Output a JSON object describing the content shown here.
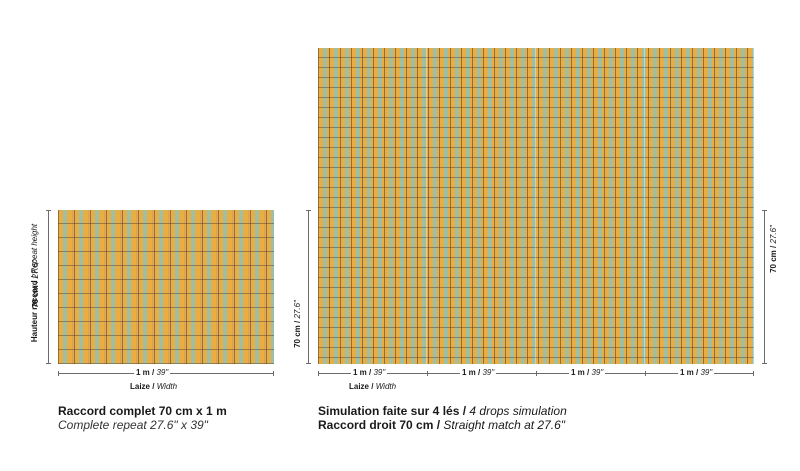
{
  "left": {
    "vertical_label_bold": "Hauteur raccord /",
    "vertical_label_italic": "Repeat height",
    "vertical_dim_bold": "70 cm /",
    "vertical_dim_italic": "27.6\"",
    "width_bold": "1 m /",
    "width_italic": "39\"",
    "laize_bold": "Laize /",
    "laize_italic": "Width",
    "caption_line1": "Raccord complet 70 cm x 1 m",
    "caption_line2": "Complete repeat 27.6\" x 39\""
  },
  "right": {
    "left_dim_bold": "70 cm /",
    "left_dim_italic": "27.6\"",
    "right_dim_bold": "70 cm /",
    "right_dim_italic": "27.6\"",
    "drops": [
      {
        "bold": "1 m /",
        "italic": "39\""
      },
      {
        "bold": "1 m /",
        "italic": "39\""
      },
      {
        "bold": "1 m /",
        "italic": "39\""
      },
      {
        "bold": "1 m /",
        "italic": "39\""
      }
    ],
    "laize_bold": "Laize /",
    "laize_italic": "Width",
    "caption_line1_bold": "Simulation faite sur 4 lés /",
    "caption_line1_italic": "4 drops simulation",
    "caption_line2_bold": "Raccord droit 70 cm /",
    "caption_line2_italic": "Straight match at 27.6\""
  },
  "colors": {
    "base_ochre": "#e9ad45",
    "accent_sage": "#9fbfa5",
    "outline": "#463c32"
  }
}
